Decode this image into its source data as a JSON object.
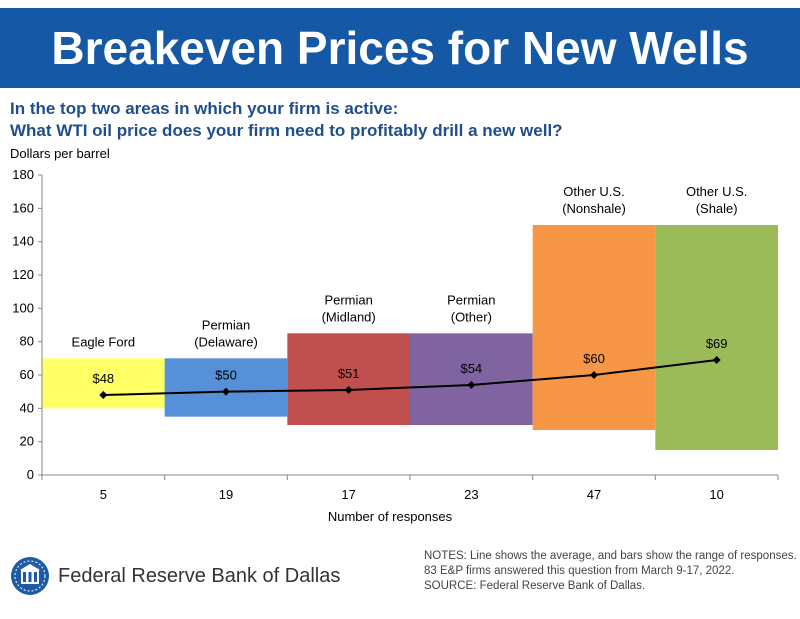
{
  "header": {
    "title": "Breakeven Prices for New Wells"
  },
  "question": {
    "line1": "In the top two areas in which your firm is active:",
    "line2": "What WTI oil price does your firm need to profitably drill a new well?"
  },
  "chart_data": {
    "type": "bar",
    "ylabel": "Dollars per barrel",
    "xlabel": "Number of responses",
    "ylim": [
      0,
      180
    ],
    "yticks": [
      0,
      20,
      40,
      60,
      80,
      100,
      120,
      140,
      160,
      180
    ],
    "categories": [
      {
        "label_lines": [
          "Eagle Ford"
        ],
        "responses": "5",
        "low": 40,
        "high": 70,
        "average": 48,
        "avg_label": "$48",
        "color": "#ffff66"
      },
      {
        "label_lines": [
          "Permian",
          "(Delaware)"
        ],
        "responses": "19",
        "low": 35,
        "high": 70,
        "average": 50,
        "avg_label": "$50",
        "color": "#5590d8"
      },
      {
        "label_lines": [
          "Permian",
          "(Midland)"
        ],
        "responses": "17",
        "low": 30,
        "high": 85,
        "average": 51,
        "avg_label": "$51",
        "color": "#c0504d"
      },
      {
        "label_lines": [
          "Permian",
          "(Other)"
        ],
        "responses": "23",
        "low": 30,
        "high": 85,
        "average": 54,
        "avg_label": "$54",
        "color": "#8064a2"
      },
      {
        "label_lines": [
          "Other U.S.",
          "(Nonshale)"
        ],
        "responses": "47",
        "low": 27,
        "high": 150,
        "average": 60,
        "avg_label": "$60",
        "color": "#f79646"
      },
      {
        "label_lines": [
          "Other U.S.",
          "(Shale)"
        ],
        "responses": "10",
        "low": 15,
        "high": 150,
        "average": 69,
        "avg_label": "$69",
        "color": "#9bbb59"
      }
    ],
    "line_series": {
      "name": "Average",
      "values": [
        48,
        50,
        51,
        54,
        60,
        69
      ]
    },
    "bar_meaning": "range of responses",
    "grid": false
  },
  "footer": {
    "bank": "Federal Reserve Bank of Dallas",
    "notes": [
      "NOTES: Line shows the average, and bars show the range of responses.",
      "83 E&P firms answered this question from March 9-17, 2022.",
      "SOURCE: Federal Reserve Bank of Dallas."
    ]
  }
}
